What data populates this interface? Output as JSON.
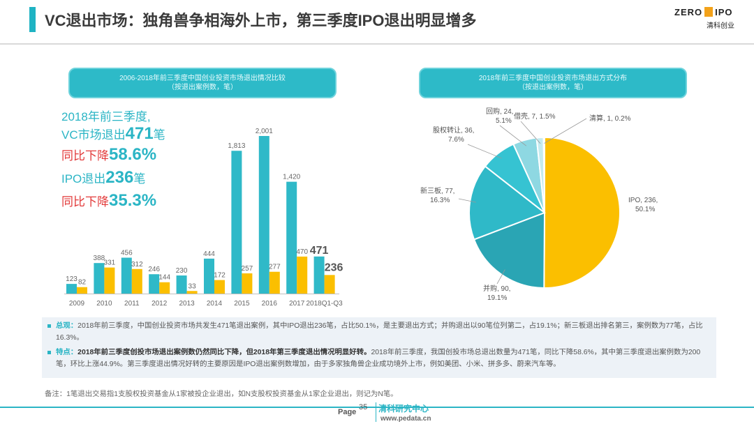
{
  "header": {
    "title": "VC退出市场：独角兽争相海外上市，第三季度IPO退出明显增多",
    "logo_text_left": "ZERO",
    "logo_text_right": "IPO",
    "logo_subtext": "清科创业",
    "accent_color": "#1fb3c3"
  },
  "left_panel": {
    "title_line1": "2006-2018年前三季度中国创业投资市场退出情况比较",
    "title_line2": "（按退出案例数，笔）",
    "highlights": {
      "line1": "2018年前三季度,",
      "line2_prefix": "VC市场退出",
      "line2_value": "471",
      "line2_suffix": "笔",
      "line3_prefix": "同比下降",
      "line3_value": "58.6%",
      "line4_prefix": "IPO退出",
      "line4_value": "236",
      "line4_suffix": "笔",
      "line5_prefix": "同比下降",
      "line5_value": "35.3%"
    }
  },
  "right_panel": {
    "title_line1": "2018年前三季度中国创业投资市场退出方式分布",
    "title_line2": "（按退出案例数，笔）"
  },
  "chart_data": [
    {
      "type": "bar",
      "categories": [
        "2009",
        "2010",
        "2011",
        "2012",
        "2013",
        "2014",
        "2015",
        "2016",
        "2017",
        "2018Q1-Q3"
      ],
      "series": [
        {
          "values": [
            123,
            388,
            456,
            246,
            230,
            444,
            1813,
            2001,
            1420,
            471
          ],
          "color": "#2fb9c8"
        },
        {
          "values": [
            82,
            331,
            312,
            144,
            33,
            172,
            257,
            277,
            470,
            236
          ],
          "color": "#fbbf00"
        }
      ],
      "data_labels": {
        "series0": [
          "123",
          "388",
          "456",
          "246",
          "230",
          "444",
          "1,813",
          "2,001",
          "1,420",
          "471"
        ],
        "series1": [
          "82",
          "331",
          "312",
          "144",
          "33",
          "172",
          "257",
          "277",
          "470",
          "236"
        ]
      },
      "ylim": [
        0,
        2100
      ]
    },
    {
      "type": "pie",
      "labels": [
        "IPO",
        "并购",
        "新三板",
        "股权转让",
        "回购",
        "借壳",
        "清算"
      ],
      "values": [
        236,
        90,
        77,
        36,
        24,
        7,
        1
      ],
      "percent_labels": [
        "50.1%",
        "19.1%",
        "16.3%",
        "7.6%",
        "5.1%",
        "1.5%",
        "0.2%"
      ],
      "colors": [
        "#fbbf00",
        "#2aa5b4",
        "#2fb9c8",
        "#36c3d2",
        "#8ed8e2",
        "#c5ebf0",
        "#4a9ec4"
      ]
    }
  ],
  "notes": {
    "note1_label": "总观：",
    "note1_text": "2018年前三季度，中国创业投资市场共发生471笔退出案例，其中IPO退出236笔，占比50.1%，是主要退出方式；并购退出以90笔位列第二，占19.1%；新三板退出排名第三，案例数为77笔，占比16.3%。",
    "note2_label": "特点：",
    "note2_bold": "2018年前三季度创投市场退出案例数仍然同比下降，但2018年第三季度退出情况明显好转。",
    "note2_text": "2018年前三季度，我国创投市场总退出数量为471笔，同比下降58.6%，其中第三季度退出案例数为200笔，环比上涨44.9%。第三季度退出情况好转的主要原因是IPO退出案例数增加，由于多家独角兽企业成功境外上市，例如美团、小米、拼多多、蔚来汽车等。"
  },
  "footnote": "备注：1笔退出交易指1支股权投资基金从1家被投企业退出，如N支股权投资基金从1家企业退出，则记为N笔。",
  "footer": {
    "page_label": "Page",
    "page_number": "35",
    "brand": "清科研究中心",
    "url": "www.pedata.cn"
  }
}
